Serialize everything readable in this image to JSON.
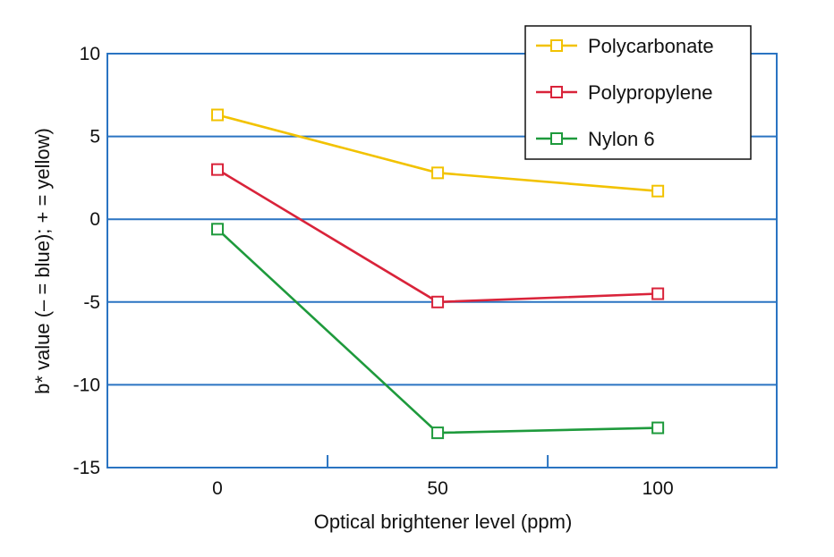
{
  "chart_data": {
    "type": "line",
    "x": [
      0,
      50,
      100
    ],
    "x_tick_labels": [
      "0",
      "50",
      "100"
    ],
    "xlabel": "Optical brightener level (ppm)",
    "ylabel": "b* value (– = blue); + = yellow)",
    "xlim": [
      -25,
      127
    ],
    "ylim": [
      -15,
      10
    ],
    "y_ticks": [
      10,
      5,
      0,
      -5,
      -10,
      -15
    ],
    "y_tick_labels": [
      "10",
      "5",
      "0",
      "-5",
      "-10",
      "-15"
    ],
    "grid": "horizontal",
    "legend_position": "top-right",
    "series": [
      {
        "name": "Polycarbonate",
        "color": "#f2c200",
        "values": [
          6.3,
          2.8,
          1.7
        ]
      },
      {
        "name": "Polypropylene",
        "color": "#d9233a",
        "values": [
          3.0,
          -5.0,
          -4.5
        ]
      },
      {
        "name": "Nylon 6",
        "color": "#1e9a3c",
        "values": [
          -0.6,
          -12.9,
          -12.6
        ]
      }
    ],
    "axis_color": "#2a74c2"
  }
}
